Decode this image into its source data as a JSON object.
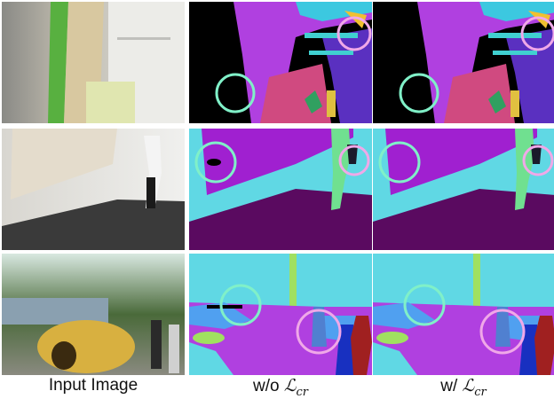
{
  "captions": [
    {
      "text": "Input Image"
    },
    {
      "prefix": "w/o",
      "symbol": "ℒ",
      "subscript": "cr"
    },
    {
      "prefix": "w/",
      "symbol": "ℒ",
      "subscript": "cr"
    }
  ]
}
